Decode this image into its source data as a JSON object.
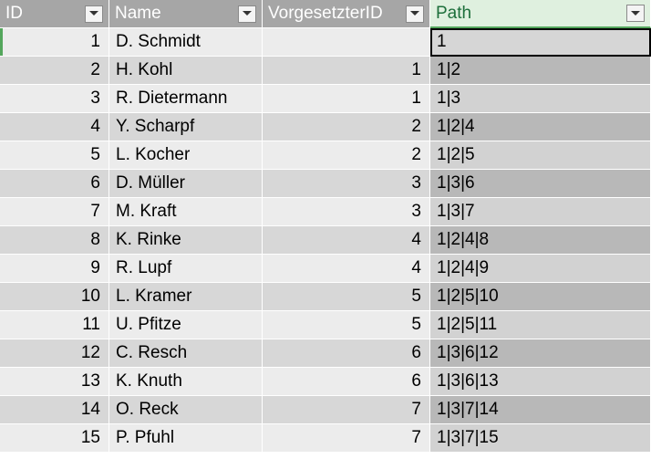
{
  "table": {
    "headers": [
      "ID",
      "Name",
      "VorgesetzterID",
      "Path"
    ],
    "rows": [
      {
        "id": "1",
        "name": "D. Schmidt",
        "boss": "",
        "path": "1"
      },
      {
        "id": "2",
        "name": "H. Kohl",
        "boss": "1",
        "path": "1|2"
      },
      {
        "id": "3",
        "name": "R. Dietermann",
        "boss": "1",
        "path": "1|3"
      },
      {
        "id": "4",
        "name": "Y. Scharpf",
        "boss": "2",
        "path": "1|2|4"
      },
      {
        "id": "5",
        "name": "L. Kocher",
        "boss": "2",
        "path": "1|2|5"
      },
      {
        "id": "6",
        "name": "D. Müller",
        "boss": "3",
        "path": "1|3|6"
      },
      {
        "id": "7",
        "name": "M. Kraft",
        "boss": "3",
        "path": "1|3|7"
      },
      {
        "id": "8",
        "name": "K. Rinke",
        "boss": "4",
        "path": "1|2|4|8"
      },
      {
        "id": "9",
        "name": "R. Lupf",
        "boss": "4",
        "path": "1|2|4|9"
      },
      {
        "id": "10",
        "name": "L. Kramer",
        "boss": "5",
        "path": "1|2|5|10"
      },
      {
        "id": "11",
        "name": "U. Pfitze",
        "boss": "5",
        "path": "1|2|5|11"
      },
      {
        "id": "12",
        "name": "C. Resch",
        "boss": "6",
        "path": "1|3|6|12"
      },
      {
        "id": "13",
        "name": "K. Knuth",
        "boss": "6",
        "path": "1|3|6|13"
      },
      {
        "id": "14",
        "name": "O. Reck",
        "boss": "7",
        "path": "1|3|7|14"
      },
      {
        "id": "15",
        "name": "P. Pfuhl",
        "boss": "7",
        "path": "1|3|7|15"
      }
    ]
  },
  "icons": {
    "filter_dropdown": "chevron-down-icon"
  },
  "colors": {
    "header_bg": "#a6a6a6",
    "active_header_bg": "#dff0df",
    "active_header_text": "#1d6f3b",
    "band_light": "#ececec",
    "band_dark": "#d7d7d7",
    "selection_border": "#000000"
  }
}
